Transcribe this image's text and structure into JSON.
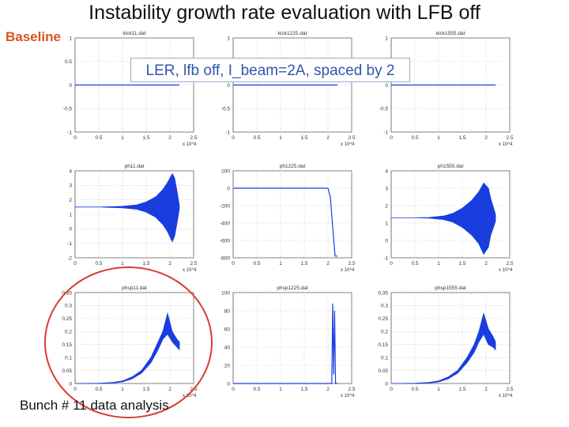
{
  "slide": {
    "title": "Instability growth rate evaluation with LFB off",
    "baseline_label": "Baseline",
    "callout": "LER, lfb off, I_beam=2A, spaced by 2",
    "footer": "Bunch # 11 data analysis"
  },
  "colors": {
    "trace": "#1a3de0",
    "grid": "#b8b8b8",
    "circle": "#d93a35",
    "baseline_label": "#d9541e",
    "callout_text": "#3355aa"
  },
  "chart_data": [
    {
      "type": "line",
      "title": "kick11.dat",
      "xlim": [
        0,
        2.5
      ],
      "ylim": [
        -1,
        1
      ],
      "xticks": [
        "0",
        "0.5",
        "1",
        "1.5",
        "2",
        "2.5"
      ],
      "yticks": [
        "1",
        "0.5",
        "0",
        "-0.5",
        "-1"
      ],
      "xexp": "x 10^4",
      "x_data_extent": 2.2,
      "series": []
    },
    {
      "type": "line",
      "title": "kick1225.dat",
      "xlim": [
        0,
        2.5
      ],
      "ylim": [
        -1,
        1
      ],
      "xticks": [
        "0",
        "0.5",
        "1",
        "1.5",
        "2",
        "2.5"
      ],
      "yticks": [
        "1",
        "0.5",
        "0",
        "-0.5",
        "-1"
      ],
      "xexp": "x 10^4",
      "x_data_extent": 2.2,
      "series": []
    },
    {
      "type": "line",
      "title": "kick1555.dat",
      "xlim": [
        0,
        2.5
      ],
      "ylim": [
        -1,
        1
      ],
      "xticks": [
        "0",
        "0.5",
        "1",
        "1.5",
        "2",
        "2.5"
      ],
      "yticks": [
        "1",
        "0.5",
        "0",
        "-0.5",
        "-1"
      ],
      "xexp": "x 10^4",
      "x_data_extent": 2.2,
      "series": []
    },
    {
      "type": "area",
      "title": "ph11.dat",
      "xlim": [
        0,
        2.5
      ],
      "ylim": [
        -2,
        4
      ],
      "xticks": [
        "0",
        "0.5",
        "1",
        "1.5",
        "2",
        "2.5"
      ],
      "yticks": [
        "4",
        "3",
        "2",
        "1",
        "0",
        "-1",
        "-2"
      ],
      "xexp": "x 10^4",
      "x_data_extent": 2.2,
      "series": [
        {
          "x": [
            0,
            0.5,
            1.0,
            1.3,
            1.5,
            1.7,
            1.85,
            1.95,
            2.05,
            2.1,
            2.15,
            2.2
          ],
          "upper": [
            1.5,
            1.5,
            1.55,
            1.65,
            1.85,
            2.2,
            2.7,
            3.2,
            3.8,
            3.5,
            2.6,
            1.6
          ],
          "lower": [
            1.5,
            1.5,
            1.45,
            1.35,
            1.15,
            0.8,
            0.3,
            -0.2,
            -0.9,
            -0.5,
            0.4,
            1.4
          ]
        }
      ]
    },
    {
      "type": "line",
      "title": "ph1225.dat",
      "xlim": [
        0,
        2.5
      ],
      "ylim": [
        -800,
        200
      ],
      "xticks": [
        "0",
        "0.5",
        "1",
        "1.5",
        "2",
        "2.5"
      ],
      "yticks": [
        "200",
        "0",
        "-200",
        "-400",
        "-600",
        "-800"
      ],
      "xexp": "x 10^4",
      "x_data_extent": 2.2,
      "series": [
        {
          "x": [
            0,
            1.0,
            2.0,
            2.05,
            2.1,
            2.15,
            2.2
          ],
          "y": [
            0,
            0,
            0,
            -100,
            -450,
            -780,
            -780
          ]
        }
      ]
    },
    {
      "type": "area",
      "title": "ph1555.dat",
      "xlim": [
        0,
        2.5
      ],
      "ylim": [
        -1,
        4
      ],
      "xticks": [
        "0",
        "0.5",
        "1",
        "1.5",
        "2",
        "2.5"
      ],
      "yticks": [
        "4",
        "3",
        "2",
        "1",
        "0",
        "-1"
      ],
      "xexp": "x 10^4",
      "x_data_extent": 2.2,
      "series": [
        {
          "x": [
            0,
            0.5,
            0.8,
            1.1,
            1.3,
            1.5,
            1.7,
            1.85,
            1.95,
            2.05,
            2.1,
            2.2
          ],
          "upper": [
            1.3,
            1.3,
            1.32,
            1.4,
            1.55,
            1.85,
            2.3,
            2.8,
            3.3,
            3.0,
            2.4,
            1.5
          ],
          "lower": [
            1.3,
            1.3,
            1.28,
            1.2,
            1.05,
            0.75,
            0.3,
            -0.2,
            -0.8,
            -0.4,
            0.3,
            1.1
          ]
        }
      ]
    },
    {
      "type": "area",
      "title": "phsp11.dat",
      "xlim": [
        0,
        2.5
      ],
      "ylim": [
        0,
        0.35
      ],
      "xticks": [
        "0",
        "0.5",
        "1",
        "1.5",
        "2",
        "2.5"
      ],
      "yticks": [
        "0.35",
        "0.3",
        "0.25",
        "0.2",
        "0.15",
        "0.1",
        "0.05",
        "0"
      ],
      "xexp": "x 10^4",
      "x_data_extent": 2.2,
      "series": [
        {
          "x": [
            0,
            0.5,
            0.8,
            1.0,
            1.2,
            1.4,
            1.6,
            1.75,
            1.85,
            1.95,
            2.05,
            2.15,
            2.2
          ],
          "upper": [
            0.0,
            0.001,
            0.004,
            0.01,
            0.025,
            0.05,
            0.1,
            0.16,
            0.2,
            0.27,
            0.2,
            0.17,
            0.16
          ],
          "lower": [
            0.0,
            0.0,
            0.002,
            0.006,
            0.018,
            0.04,
            0.08,
            0.13,
            0.17,
            0.19,
            0.16,
            0.14,
            0.13
          ]
        }
      ]
    },
    {
      "type": "line",
      "title": "phsp1225.dat",
      "xlim": [
        0,
        2.5
      ],
      "ylim": [
        0,
        100
      ],
      "xticks": [
        "0",
        "0.5",
        "1",
        "1.5",
        "2",
        "2.5"
      ],
      "yticks": [
        "100",
        "80",
        "60",
        "40",
        "20",
        "0"
      ],
      "xexp": "x 10^4",
      "x_data_extent": 2.2,
      "series": [
        {
          "x": [
            0,
            1.0,
            2.0,
            2.08,
            2.1,
            2.12,
            2.14,
            2.16,
            2.2
          ],
          "y": [
            0,
            0,
            0,
            0,
            88,
            10,
            80,
            0,
            0
          ]
        }
      ]
    },
    {
      "type": "area",
      "title": "phsp1555.dat",
      "xlim": [
        0,
        2.5
      ],
      "ylim": [
        0,
        0.35
      ],
      "xticks": [
        "0",
        "0.5",
        "1",
        "1.5",
        "2",
        "2.5"
      ],
      "yticks": [
        "0.35",
        "0.3",
        "0.25",
        "0.2",
        "0.15",
        "0.1",
        "0.05",
        "0"
      ],
      "xexp": "x 10^4",
      "x_data_extent": 2.2,
      "series": [
        {
          "x": [
            0,
            0.5,
            0.8,
            1.0,
            1.2,
            1.4,
            1.6,
            1.75,
            1.85,
            1.95,
            2.05,
            2.15,
            2.2
          ],
          "upper": [
            0.0,
            0.001,
            0.004,
            0.01,
            0.025,
            0.05,
            0.1,
            0.15,
            0.2,
            0.27,
            0.21,
            0.18,
            0.16
          ],
          "lower": [
            0.0,
            0.0,
            0.002,
            0.006,
            0.018,
            0.04,
            0.08,
            0.12,
            0.16,
            0.19,
            0.15,
            0.14,
            0.13
          ]
        }
      ]
    }
  ]
}
